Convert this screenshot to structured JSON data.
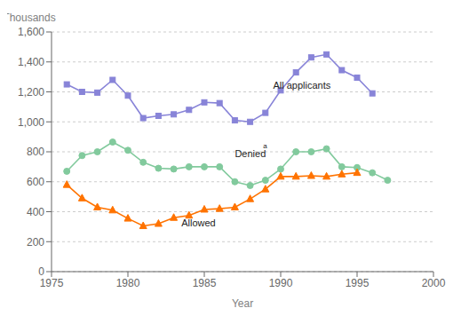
{
  "chart_data": {
    "type": "line",
    "xlabel": "Year",
    "ylabel": "Thousands",
    "xlim": [
      1975,
      2000
    ],
    "xticks": [
      1975,
      1980,
      1985,
      1990,
      1995,
      2000
    ],
    "ylim": [
      0,
      1600
    ],
    "yticks": [
      0,
      200,
      400,
      600,
      800,
      {
        "value": 1000,
        "label": "1,000"
      },
      {
        "value": 1200,
        "label": "1,200"
      },
      {
        "value": 1400,
        "label": "1,400"
      },
      {
        "value": 1600,
        "label": "1,600"
      }
    ],
    "grid": "y",
    "series": [
      {
        "x": [
          1976,
          1977,
          1978,
          1979,
          1980,
          1981,
          1982,
          1983,
          1984,
          1985,
          1986,
          1987,
          1988,
          1989,
          1990,
          1991,
          1992,
          1993,
          1994,
          1995,
          1996
        ],
        "values": [
          1250,
          1200,
          1195,
          1280,
          1175,
          1025,
          1040,
          1050,
          1080,
          1130,
          1125,
          1010,
          1000,
          1060,
          1210,
          1330,
          1430,
          1450,
          1345,
          1295,
          1190
        ],
        "marker": "square",
        "color": "#8884d8"
      },
      {
        "x": [
          1976,
          1977,
          1978,
          1979,
          1980,
          1981,
          1982,
          1983,
          1984,
          1985,
          1986,
          1987,
          1988,
          1989,
          1990,
          1991,
          1992,
          1993,
          1994,
          1995,
          1996,
          1997
        ],
        "values": [
          670,
          775,
          800,
          865,
          810,
          730,
          690,
          685,
          700,
          700,
          700,
          600,
          575,
          610,
          685,
          800,
          800,
          820,
          700,
          695,
          660,
          610
        ],
        "marker": "circle",
        "color": "#82ca9d"
      },
      {
        "x": [
          1976,
          1977,
          1978,
          1979,
          1980,
          1981,
          1982,
          1983,
          1984,
          1985,
          1986,
          1987,
          1988,
          1989,
          1990,
          1991,
          1992,
          1993,
          1994,
          1995
        ],
        "values": [
          580,
          490,
          430,
          410,
          355,
          305,
          320,
          360,
          375,
          415,
          420,
          430,
          485,
          550,
          635,
          635,
          640,
          635,
          650,
          660
        ],
        "marker": "triangle",
        "color": "#ff7300"
      }
    ],
    "annotations": [
      {
        "text": "All applicants",
        "x": 1989.5,
        "y": 1210
      },
      {
        "text": "Denied",
        "x": 1987.0,
        "y": 755
      },
      {
        "text": "a",
        "x": 1988.85,
        "y": 810
      },
      {
        "text": "Allowed",
        "x": 1983.5,
        "y": 290
      }
    ]
  }
}
